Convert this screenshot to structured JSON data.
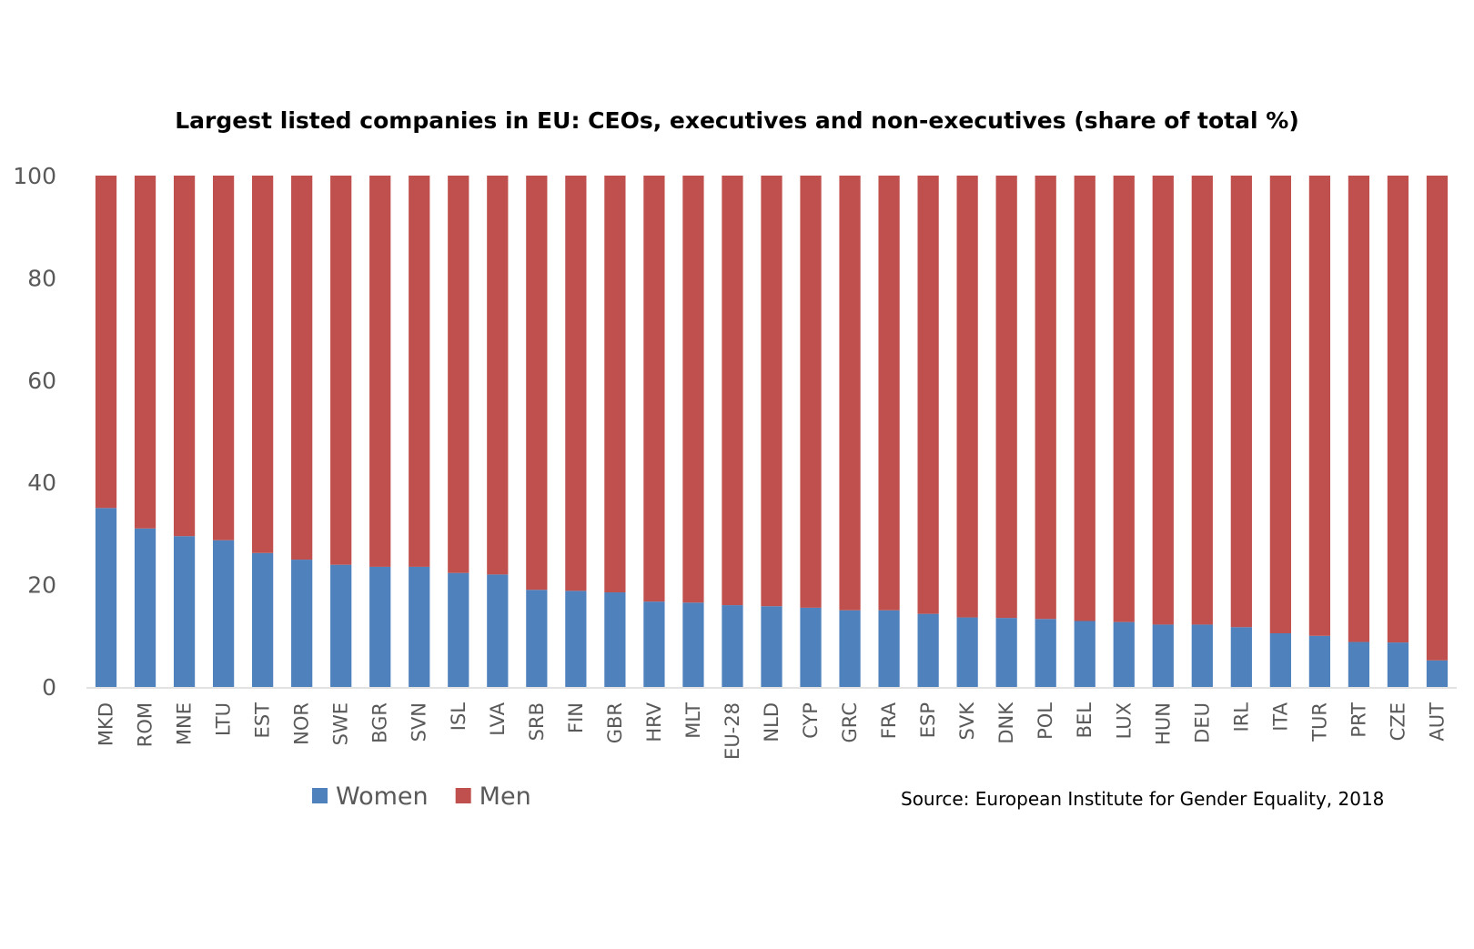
{
  "chart_data": {
    "type": "bar",
    "stacked": true,
    "title": "Largest listed companies in EU: CEOs, executives and non-executives (share of total %)",
    "xlabel": "",
    "ylabel": "",
    "ylim": [
      0,
      100
    ],
    "yticks": [
      0,
      20,
      40,
      60,
      80,
      100
    ],
    "grid": false,
    "legend_position": "bottom-left",
    "categories": [
      "MKD",
      "ROM",
      "MNE",
      "LTU",
      "EST",
      "NOR",
      "SWE",
      "BGR",
      "SVN",
      "ISL",
      "LVA",
      "SRB",
      "FIN",
      "GBR",
      "HRV",
      "MLT",
      "EU-28",
      "NLD",
      "CYP",
      "GRC",
      "FRA",
      "ESP",
      "SVK",
      "DNK",
      "POL",
      "BEL",
      "LUX",
      "HUN",
      "DEU",
      "IRL",
      "ITA",
      "TUR",
      "PRT",
      "CZE",
      "AUT"
    ],
    "series": [
      {
        "name": "Women",
        "color": "#4f81bd",
        "values": [
          35,
          31,
          29.5,
          28.7,
          26.2,
          24.9,
          23.9,
          23.5,
          23.5,
          22.3,
          22,
          19,
          18.8,
          18.5,
          16.7,
          16.5,
          16,
          15.8,
          15.5,
          15,
          15,
          14.3,
          13.6,
          13.5,
          13.3,
          12.9,
          12.7,
          12.2,
          12.2,
          11.7,
          10.5,
          10,
          8.8,
          8.7,
          5.2
        ]
      },
      {
        "name": "Men",
        "color": "#c0504d",
        "values": [
          65,
          69,
          70.5,
          71.3,
          73.8,
          75.1,
          76.1,
          76.5,
          76.5,
          77.7,
          78,
          81,
          81.2,
          81.5,
          83.3,
          83.5,
          84,
          84.2,
          84.5,
          85,
          85,
          85.7,
          86.4,
          86.5,
          86.7,
          87.1,
          87.3,
          87.8,
          87.8,
          88.3,
          89.5,
          90,
          91.2,
          91.3,
          94.8
        ]
      }
    ]
  },
  "source_note": "Source: European Institute for Gender Equality, 2018"
}
